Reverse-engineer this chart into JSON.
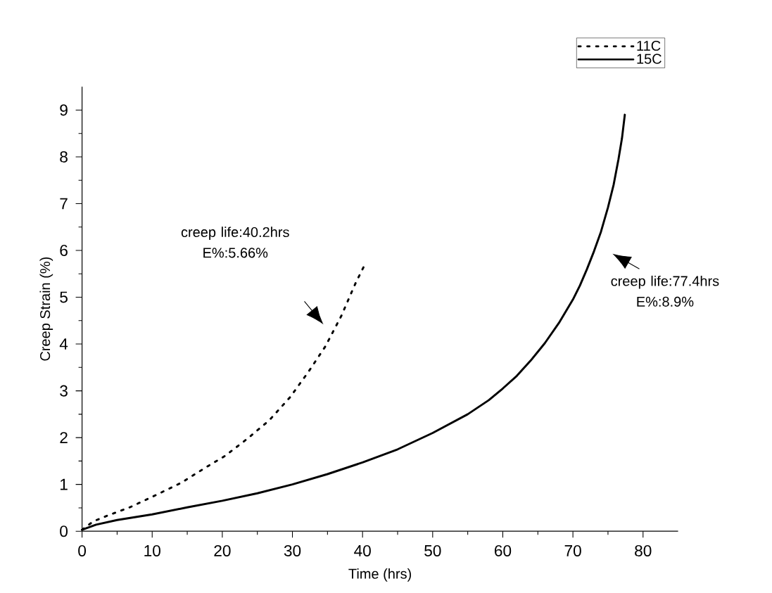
{
  "chart_data": {
    "type": "line",
    "xlabel": "Time (hrs)",
    "ylabel": "Creep Strain (%)",
    "xlim": [
      0,
      85
    ],
    "xticks": [
      0,
      10,
      20,
      30,
      40,
      50,
      60,
      70,
      80
    ],
    "ylim": [
      0,
      9.5
    ],
    "yticks": [
      0,
      1,
      2,
      3,
      4,
      5,
      6,
      7,
      8,
      9
    ],
    "legend": "top right",
    "grid": false,
    "series": [
      {
        "name": "11C",
        "color": "#000000",
        "line_style": "dotted",
        "x": [
          0,
          1.6,
          3.4,
          6.8,
          10.5,
          14.2,
          17.5,
          20.4,
          23.6,
          26.7,
          29.7,
          32.3,
          34.7,
          37.0,
          39.0,
          40.2
        ],
        "values": [
          0.03,
          0.21,
          0.32,
          0.51,
          0.77,
          1.04,
          1.35,
          1.61,
          1.98,
          2.37,
          2.87,
          3.41,
          3.95,
          4.61,
          5.3,
          5.66
        ]
      },
      {
        "name": "15C",
        "color": "#000000",
        "line_style": "solid",
        "x": [
          0,
          2,
          5,
          10,
          15,
          20,
          25,
          30,
          35,
          40,
          45,
          50,
          55,
          58,
          60,
          62,
          64,
          66,
          68,
          70,
          71,
          72,
          73,
          74,
          75,
          75.8,
          76.5,
          77,
          77.4
        ],
        "values": [
          0.03,
          0.14,
          0.24,
          0.36,
          0.51,
          0.65,
          0.81,
          1.0,
          1.22,
          1.47,
          1.75,
          2.1,
          2.5,
          2.8,
          3.05,
          3.32,
          3.65,
          4.02,
          4.45,
          4.95,
          5.25,
          5.6,
          5.98,
          6.4,
          6.92,
          7.4,
          7.95,
          8.4,
          8.9
        ]
      }
    ],
    "annotations": [
      "creep life:40.2hrs E%:5.66%",
      "creep life:77.4hrs E%:8.9%"
    ]
  }
}
